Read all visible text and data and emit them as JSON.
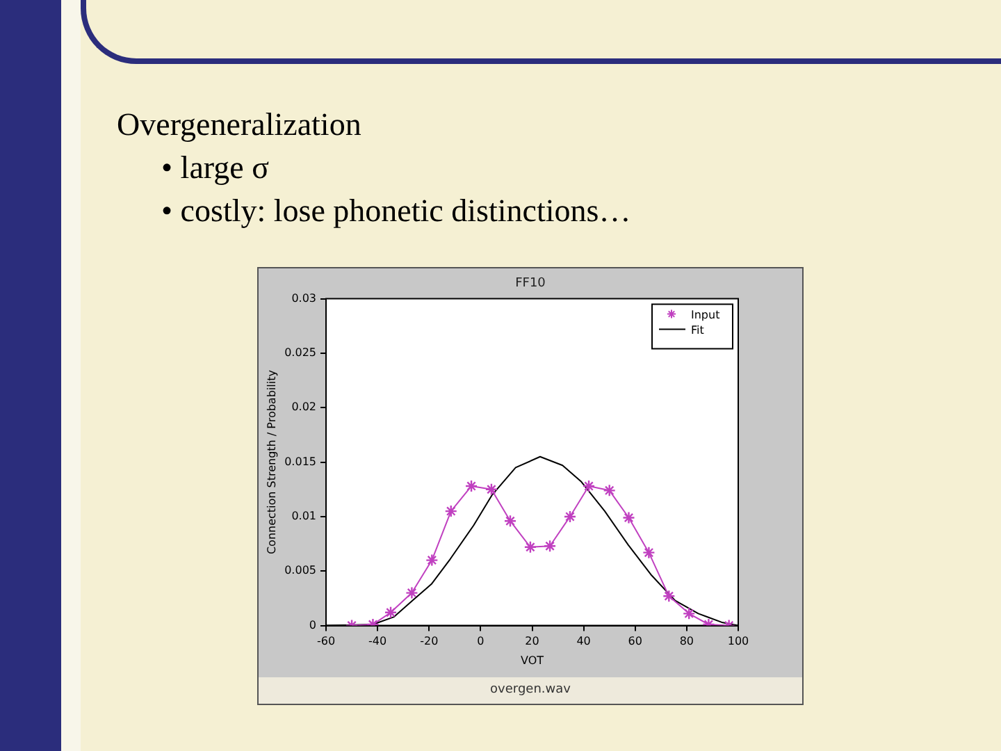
{
  "chart_data": {
    "type": "line",
    "title": "FF10",
    "xlabel": "VOT",
    "ylabel": "Connection Strength / Probability",
    "annotations": [
      "Overgeneralization",
      "• large σ",
      "• costly: lose phonetic distinctions…",
      "overgen.wav"
    ],
    "xlim": [
      -60,
      100
    ],
    "xticks": [
      -60,
      -40,
      -20,
      0,
      20,
      40,
      60,
      80,
      100
    ],
    "ylim": [
      0,
      0.03
    ],
    "yticks": [
      0,
      0.005,
      0.01,
      0.015,
      0.02,
      0.025,
      0.03
    ],
    "grid": false,
    "legend": "top right",
    "series": [
      {
        "name": "Input",
        "color": "#c040c0",
        "marker": "cross",
        "x": [
          -50,
          -41.8,
          -34.9,
          -26.7,
          -18.9,
          -11.5,
          -3.6,
          4.2,
          11.5,
          19.3,
          26.9,
          34.7,
          42,
          50,
          57.5,
          65.3,
          73.1,
          80.9,
          88.5,
          96.4
        ],
        "values": [
          0,
          0.0001,
          0.0012,
          0.003,
          0.006,
          0.0105,
          0.0128,
          0.0125,
          0.0096,
          0.0072,
          0.0073,
          0.01,
          0.0128,
          0.0124,
          0.0099,
          0.0067,
          0.0027,
          0.0011,
          0.0001,
          0
        ]
      },
      {
        "name": "Fit",
        "color": "#000000",
        "marker": "none",
        "x": [
          -60,
          -41.8,
          -33.6,
          -26.4,
          -19.1,
          -11.8,
          -2.7,
          4.5,
          13.6,
          23.1,
          31.8,
          39.1,
          48.2,
          57.3,
          66.4,
          75.5,
          84.5,
          93.6,
          100
        ],
        "values": [
          0,
          0.0001,
          0.0008,
          0.0023,
          0.0038,
          0.0061,
          0.0092,
          0.012,
          0.0145,
          0.0155,
          0.0147,
          0.0132,
          0.0105,
          0.0074,
          0.0046,
          0.0023,
          0.0011,
          0.0003,
          0
        ]
      }
    ]
  }
}
